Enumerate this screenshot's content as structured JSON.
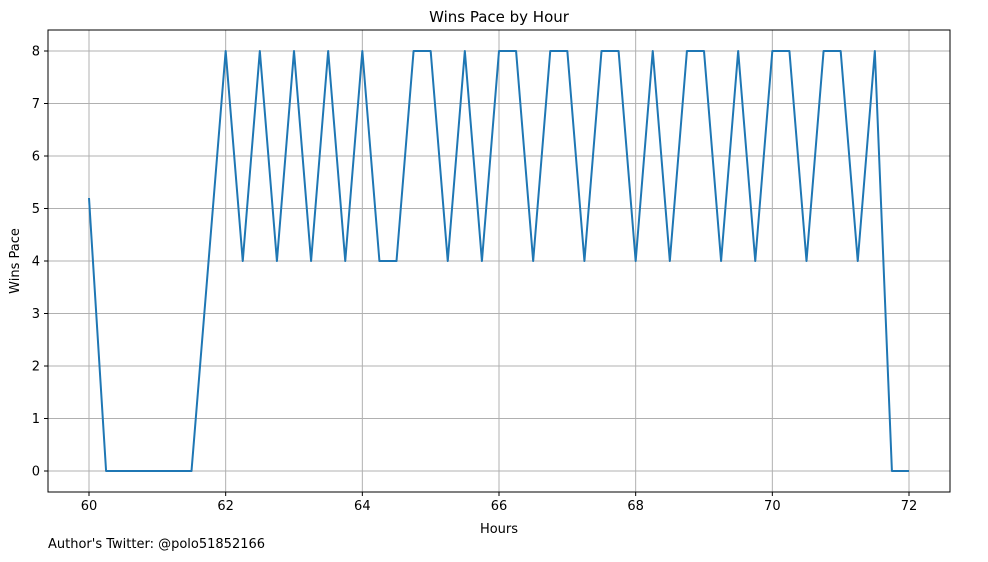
{
  "chart_data": {
    "type": "line",
    "title": "Wins Pace by Hour",
    "xlabel": "Hours",
    "ylabel": "Wins Pace",
    "xlim": [
      59.4,
      72.6
    ],
    "ylim": [
      -0.4,
      8.4
    ],
    "xticks": [
      60,
      62,
      64,
      66,
      68,
      70,
      72
    ],
    "yticks": [
      0,
      1,
      2,
      3,
      4,
      5,
      6,
      7,
      8
    ],
    "grid": true,
    "color": "#1f77b4",
    "series": [
      {
        "x": [
          60,
          60.25,
          60.5,
          60.75,
          61,
          61.25,
          61.5,
          62,
          62.25,
          62.5,
          62.75,
          63,
          63.25,
          63.5,
          63.75,
          64,
          64.25,
          64.5,
          64.75,
          65,
          65.25,
          65.5,
          65.75,
          66,
          66.25,
          66.5,
          66.75,
          67,
          67.25,
          67.5,
          67.75,
          68,
          68.25,
          68.5,
          68.75,
          69,
          69.25,
          69.5,
          69.75,
          70,
          70.25,
          70.5,
          70.75,
          71,
          71.25,
          71.5,
          71.75,
          72
        ],
        "values": [
          5.2,
          0,
          0,
          0,
          0,
          0,
          0,
          8,
          4,
          8,
          4,
          8,
          4,
          8,
          4,
          8,
          4,
          4,
          8,
          8,
          4,
          8,
          4,
          8,
          8,
          4,
          8,
          8,
          4,
          8,
          8,
          4,
          8,
          4,
          8,
          8,
          4,
          8,
          4,
          8,
          8,
          4,
          8,
          8,
          4,
          8,
          0,
          0
        ]
      }
    ]
  },
  "footnote": "Author's Twitter: @polo51852166"
}
